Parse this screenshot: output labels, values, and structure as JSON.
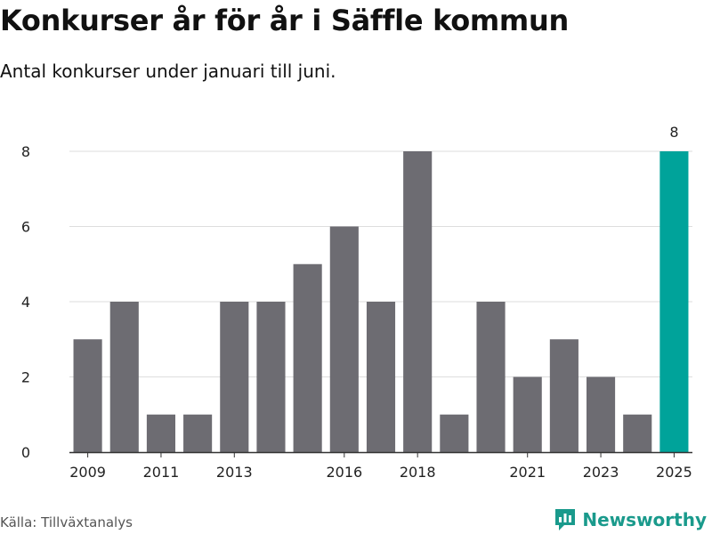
{
  "title": "Konkurser år för år i Säffle kommun",
  "subtitle": "Antal konkurser under januari till juni.",
  "source": "Källa: Tillväxtanalys",
  "brand": "Newsworthy",
  "colors": {
    "bar": "#6d6c72",
    "highlight": "#00a39a",
    "grid": "#dddddd",
    "axis": "#333333"
  },
  "chart_data": {
    "type": "bar",
    "title": "Konkurser år för år i Säffle kommun",
    "subtitle": "Antal konkurser under januari till juni.",
    "categories": [
      "2009",
      "2010",
      "2011",
      "2012",
      "2013",
      "2014",
      "2015",
      "2016",
      "2017",
      "2018",
      "2019",
      "2020",
      "2021",
      "2022",
      "2023",
      "2024",
      "2025"
    ],
    "values": [
      3,
      4,
      1,
      1,
      4,
      4,
      5,
      6,
      4,
      8,
      1,
      4,
      2,
      3,
      2,
      1,
      8
    ],
    "xtick_labels": [
      "2009",
      "2011",
      "2013",
      "2016",
      "2018",
      "2021",
      "2023",
      "2025"
    ],
    "yticks": [
      0,
      2,
      4,
      6,
      8
    ],
    "ylim": [
      0,
      8.8
    ],
    "highlight_index": 16,
    "data_labels": [
      {
        "index": 16,
        "text": "8"
      }
    ],
    "xlabel": "",
    "ylabel": "",
    "grid": true,
    "legend": "none"
  }
}
